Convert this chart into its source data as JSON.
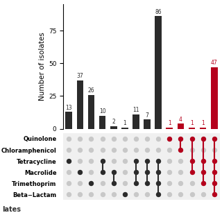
{
  "bars": [
    {
      "value": 13,
      "color": "#2b2b2b",
      "dots": [
        0,
        0,
        1,
        0,
        0,
        0
      ]
    },
    {
      "value": 37,
      "color": "#2b2b2b",
      "dots": [
        0,
        0,
        0,
        1,
        0,
        0
      ]
    },
    {
      "value": 26,
      "color": "#2b2b2b",
      "dots": [
        0,
        0,
        0,
        0,
        1,
        0
      ]
    },
    {
      "value": 10,
      "color": "#2b2b2b",
      "dots": [
        0,
        0,
        1,
        1,
        0,
        0
      ]
    },
    {
      "value": 2,
      "color": "#2b2b2b",
      "dots": [
        0,
        0,
        0,
        1,
        1,
        0
      ]
    },
    {
      "value": 1,
      "color": "#2b2b2b",
      "dots": [
        0,
        0,
        0,
        0,
        0,
        1
      ]
    },
    {
      "value": 11,
      "color": "#2b2b2b",
      "dots": [
        0,
        0,
        1,
        1,
        1,
        0
      ]
    },
    {
      "value": 7,
      "color": "#2b2b2b",
      "dots": [
        0,
        0,
        1,
        1,
        1,
        0
      ]
    },
    {
      "value": 86,
      "color": "#2b2b2b",
      "dots": [
        0,
        0,
        1,
        1,
        1,
        1
      ]
    },
    {
      "value": 1,
      "color": "#b5001c",
      "dots": [
        1,
        0,
        0,
        0,
        0,
        0
      ]
    },
    {
      "value": 4,
      "color": "#b5001c",
      "dots": [
        1,
        1,
        0,
        0,
        0,
        0
      ]
    },
    {
      "value": 1,
      "color": "#b5001c",
      "dots": [
        1,
        0,
        1,
        1,
        0,
        0
      ]
    },
    {
      "value": 1,
      "color": "#b5001c",
      "dots": [
        1,
        0,
        1,
        1,
        1,
        0
      ]
    },
    {
      "value": 47,
      "color": "#b5001c",
      "dots": [
        1,
        0,
        1,
        1,
        1,
        1
      ]
    }
  ],
  "drug_classes": [
    "Quinolone",
    "Chloramphenicol",
    "Tetracycline",
    "Macrolide",
    "Trimethoprim",
    "Beta−Lactam"
  ],
  "ylabel": "Number of isolates",
  "yticks": [
    0,
    25,
    50,
    75
  ],
  "ylim_max": 95,
  "dot_color_inactive": "#c8c8c8",
  "bar_label_fontsize": 5.5,
  "ylabel_fontsize": 7.5,
  "tick_fontsize": 6.5,
  "drug_fontsize": 6.0
}
